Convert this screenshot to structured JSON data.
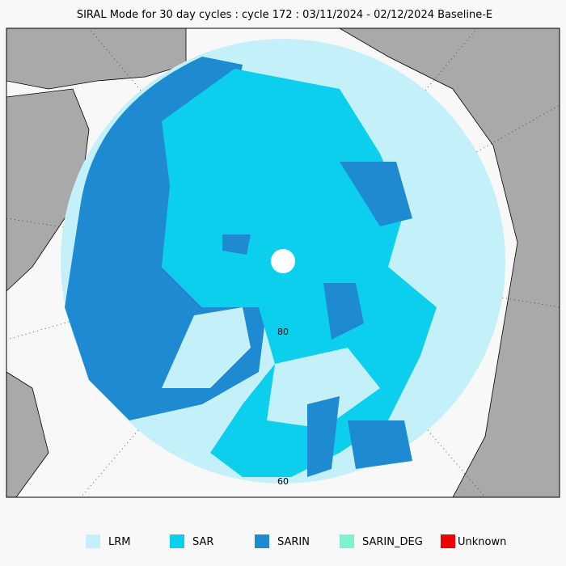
{
  "title": "SIRAL Mode for 30 day cycles : cycle 172 : 03/11/2024 - 02/12/2024 Baseline-E",
  "map": {
    "lat_labels": [
      "80",
      "60"
    ]
  },
  "legend": {
    "items": [
      {
        "label": "LRM",
        "color": "#c4f0fa"
      },
      {
        "label": "SAR",
        "color": "#0ccfee"
      },
      {
        "label": "SARIN",
        "color": "#1d8ad2"
      },
      {
        "label": "SARIN_DEG",
        "color": "#7cf2d2"
      },
      {
        "label": "Unknown",
        "color": "#f00000"
      }
    ]
  }
}
